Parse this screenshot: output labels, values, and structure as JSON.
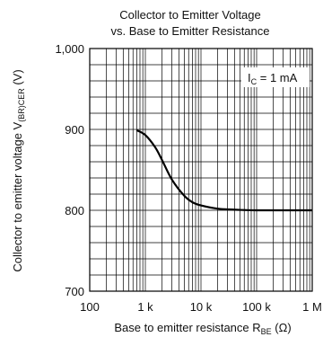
{
  "chart_data": {
    "type": "line",
    "title_line1": "Collector to Emitter Voltage",
    "title_line2": "vs. Base to Emitter Resistance",
    "xlabel": {
      "main": "Base to emitter resistance  R",
      "sub": "BE",
      "unit": "  (Ω)"
    },
    "ylabel": {
      "main": "Collector to emitter voltage  V",
      "sub": "(BR)CER",
      "unit": "  (V)"
    },
    "x_scale": "log",
    "xlim": [
      100,
      1000000
    ],
    "ylim": [
      700,
      1000
    ],
    "x_ticks": [
      {
        "value": 100,
        "label": "100"
      },
      {
        "value": 1000,
        "label": "1 k"
      },
      {
        "value": 10000,
        "label": "10 k"
      },
      {
        "value": 100000,
        "label": "100 k"
      },
      {
        "value": 1000000,
        "label": "1 M"
      }
    ],
    "y_ticks": [
      {
        "value": 700,
        "label": "700"
      },
      {
        "value": 800,
        "label": "800"
      },
      {
        "value": 900,
        "label": "900"
      },
      {
        "value": 1000,
        "label": "1,000"
      }
    ],
    "grid": true,
    "annotation": {
      "main": "I",
      "sub": "C",
      "rest": " = 1 mA",
      "placement": "top-right"
    },
    "series": [
      {
        "x": [
          700,
          1000,
          1500,
          2000,
          3000,
          5000,
          7000,
          10000,
          20000,
          50000,
          100000,
          200000,
          500000,
          1000000
        ],
        "values": [
          899,
          893,
          878,
          862,
          838,
          818,
          810,
          806,
          802,
          800.5,
          800,
          800,
          800,
          800
        ]
      }
    ]
  }
}
